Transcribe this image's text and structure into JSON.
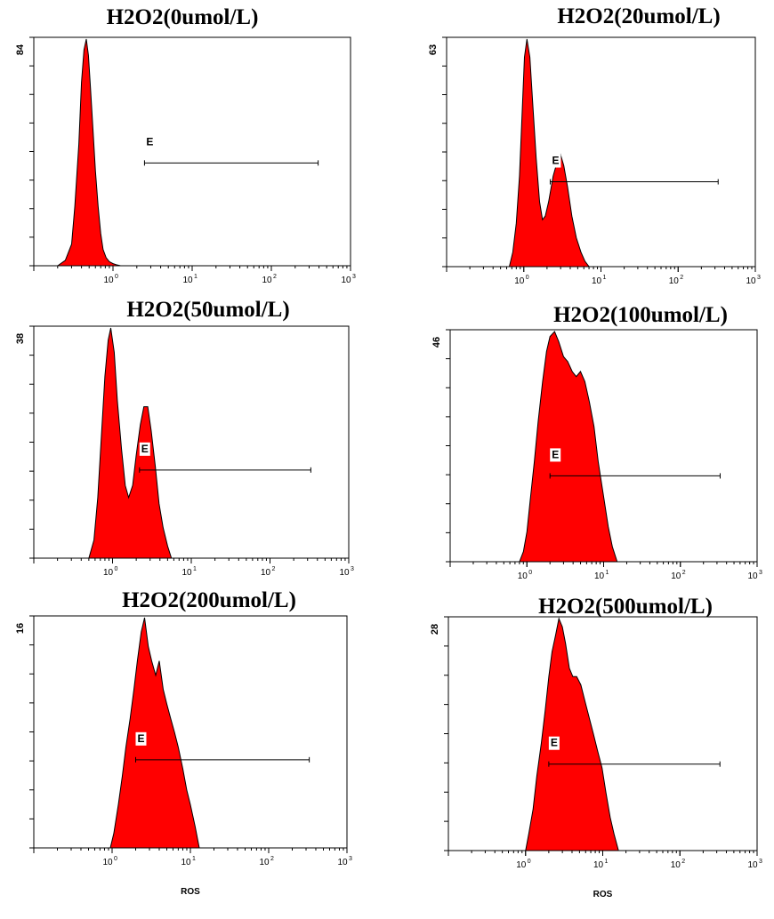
{
  "chart_data": [
    {
      "type": "area",
      "title": "H2O2(0umol/L)",
      "xlabel": "",
      "x_scale": "log",
      "xlim": [
        0.1,
        1000
      ],
      "x_ticks": [
        "10^0",
        "10^1",
        "10^2",
        "10^3"
      ],
      "y_max_label": "84",
      "ylim": [
        0,
        84
      ],
      "gate": {
        "label": "E",
        "range": [
          2.5,
          390
        ]
      },
      "series": [
        {
          "x": [
            0.2,
            0.25,
            0.3,
            0.33,
            0.37,
            0.4,
            0.43,
            0.46,
            0.49,
            0.52,
            0.56,
            0.6,
            0.65,
            0.7,
            0.75,
            0.82,
            0.9,
            1.0,
            1.1,
            1.25
          ],
          "values": [
            0,
            2,
            8,
            22,
            45,
            68,
            80,
            84,
            78,
            66,
            50,
            35,
            22,
            12,
            6,
            3,
            1.5,
            0.8,
            0.4,
            0
          ]
        }
      ]
    },
    {
      "type": "area",
      "title": "H2O2(20umol/L)",
      "xlabel": "",
      "x_scale": "log",
      "xlim": [
        0.1,
        1000
      ],
      "x_ticks": [
        "10^0",
        "10^1",
        "10^2",
        "10^3"
      ],
      "y_max_label": "63",
      "ylim": [
        0,
        63
      ],
      "gate": {
        "label": "E",
        "range": [
          2.2,
          330
        ]
      },
      "series": [
        {
          "x": [
            0.65,
            0.72,
            0.8,
            0.88,
            0.95,
            1.02,
            1.1,
            1.2,
            1.3,
            1.45,
            1.6,
            1.75,
            1.9,
            2.1,
            2.4,
            2.7,
            3.0,
            3.3,
            3.7,
            4.2,
            4.8,
            5.5,
            6.2,
            7.0
          ],
          "values": [
            0,
            4,
            12,
            25,
            42,
            58,
            63,
            58,
            46,
            30,
            18,
            13,
            14,
            18,
            25,
            29,
            31,
            28,
            22,
            14,
            8,
            4,
            1.5,
            0
          ]
        }
      ]
    },
    {
      "type": "area",
      "title": "H2O2(50umol/L)",
      "xlabel": "",
      "x_scale": "log",
      "xlim": [
        0.1,
        1000
      ],
      "x_ticks": [
        "10^0",
        "10^1",
        "10^2",
        "10^3"
      ],
      "y_max_label": "38",
      "ylim": [
        0,
        38
      ],
      "gate": {
        "label": "E",
        "range": [
          2.2,
          330
        ]
      },
      "series": [
        {
          "x": [
            0.5,
            0.58,
            0.65,
            0.72,
            0.8,
            0.88,
            0.95,
            1.05,
            1.15,
            1.3,
            1.45,
            1.6,
            1.8,
            2.0,
            2.25,
            2.5,
            2.8,
            3.1,
            3.5,
            3.9,
            4.4,
            5.0,
            5.6
          ],
          "values": [
            0,
            3,
            10,
            20,
            30,
            36,
            38,
            34,
            26,
            18,
            12,
            10,
            12,
            17,
            22,
            25,
            25,
            21,
            15,
            9,
            5,
            2,
            0
          ]
        }
      ]
    },
    {
      "type": "area",
      "title": "H2O2(100umol/L)",
      "xlabel": "",
      "x_scale": "log",
      "xlim": [
        0.1,
        1000
      ],
      "x_ticks": [
        "10^0",
        "10^1",
        "10^2",
        "10^3"
      ],
      "y_max_label": "46",
      "ylim": [
        0,
        46
      ],
      "gate": {
        "label": "E",
        "range": [
          2.0,
          330
        ]
      },
      "series": [
        {
          "x": [
            0.8,
            0.9,
            1.0,
            1.1,
            1.25,
            1.4,
            1.6,
            1.8,
            2.0,
            2.3,
            2.6,
            3.0,
            3.4,
            3.9,
            4.4,
            5.0,
            5.7,
            6.5,
            7.5,
            8.5,
            10,
            11.5,
            13,
            15
          ],
          "values": [
            0,
            2,
            6,
            12,
            20,
            28,
            36,
            42,
            45,
            46,
            44,
            41,
            40,
            38,
            37,
            38,
            36,
            32,
            27,
            20,
            13,
            7,
            3,
            0
          ]
        }
      ]
    },
    {
      "type": "area",
      "title": "H2O2(200umol/L)",
      "xlabel": "ROS",
      "x_scale": "log",
      "xlim": [
        0.1,
        1000
      ],
      "x_ticks": [
        "10^0",
        "10^1",
        "10^2",
        "10^3"
      ],
      "y_max_label": "16",
      "ylim": [
        0,
        16
      ],
      "gate": {
        "label": "E",
        "range": [
          2.0,
          330
        ]
      },
      "series": [
        {
          "x": [
            0.95,
            1.05,
            1.2,
            1.35,
            1.5,
            1.7,
            1.9,
            2.1,
            2.35,
            2.6,
            2.9,
            3.2,
            3.6,
            4.0,
            4.5,
            5.0,
            5.6,
            6.3,
            7.0,
            8.0,
            9.0,
            10,
            11.5,
            13
          ],
          "values": [
            0,
            1,
            3,
            5,
            7,
            9,
            11,
            13,
            15,
            16,
            14,
            13,
            12,
            13,
            11,
            10,
            9,
            8,
            7,
            5.5,
            4,
            3,
            1.5,
            0
          ]
        }
      ]
    },
    {
      "type": "area",
      "title": "H2O2(500umol/L)",
      "xlabel": "ROS",
      "x_scale": "log",
      "xlim": [
        0.1,
        1000
      ],
      "x_ticks": [
        "10^0",
        "10^1",
        "10^2",
        "10^3"
      ],
      "y_max_label": "28",
      "ylim": [
        0,
        28
      ],
      "gate": {
        "label": "E",
        "range": [
          2.0,
          330
        ]
      },
      "series": [
        {
          "x": [
            1.0,
            1.1,
            1.25,
            1.4,
            1.6,
            1.8,
            2.0,
            2.2,
            2.45,
            2.7,
            3.0,
            3.3,
            3.7,
            4.1,
            4.6,
            5.2,
            5.9,
            6.7,
            7.6,
            8.6,
            9.8,
            11,
            12.5,
            14,
            16
          ],
          "values": [
            0,
            2,
            5,
            9,
            13,
            17,
            21,
            24,
            26,
            28,
            27,
            25,
            22,
            21,
            21,
            20,
            18,
            16,
            14,
            12,
            10,
            7,
            4,
            2,
            0
          ]
        }
      ]
    }
  ],
  "colors": {
    "fill": "#ff0000",
    "outline": "#000000",
    "axis": "#000000",
    "background": "#ffffff"
  }
}
